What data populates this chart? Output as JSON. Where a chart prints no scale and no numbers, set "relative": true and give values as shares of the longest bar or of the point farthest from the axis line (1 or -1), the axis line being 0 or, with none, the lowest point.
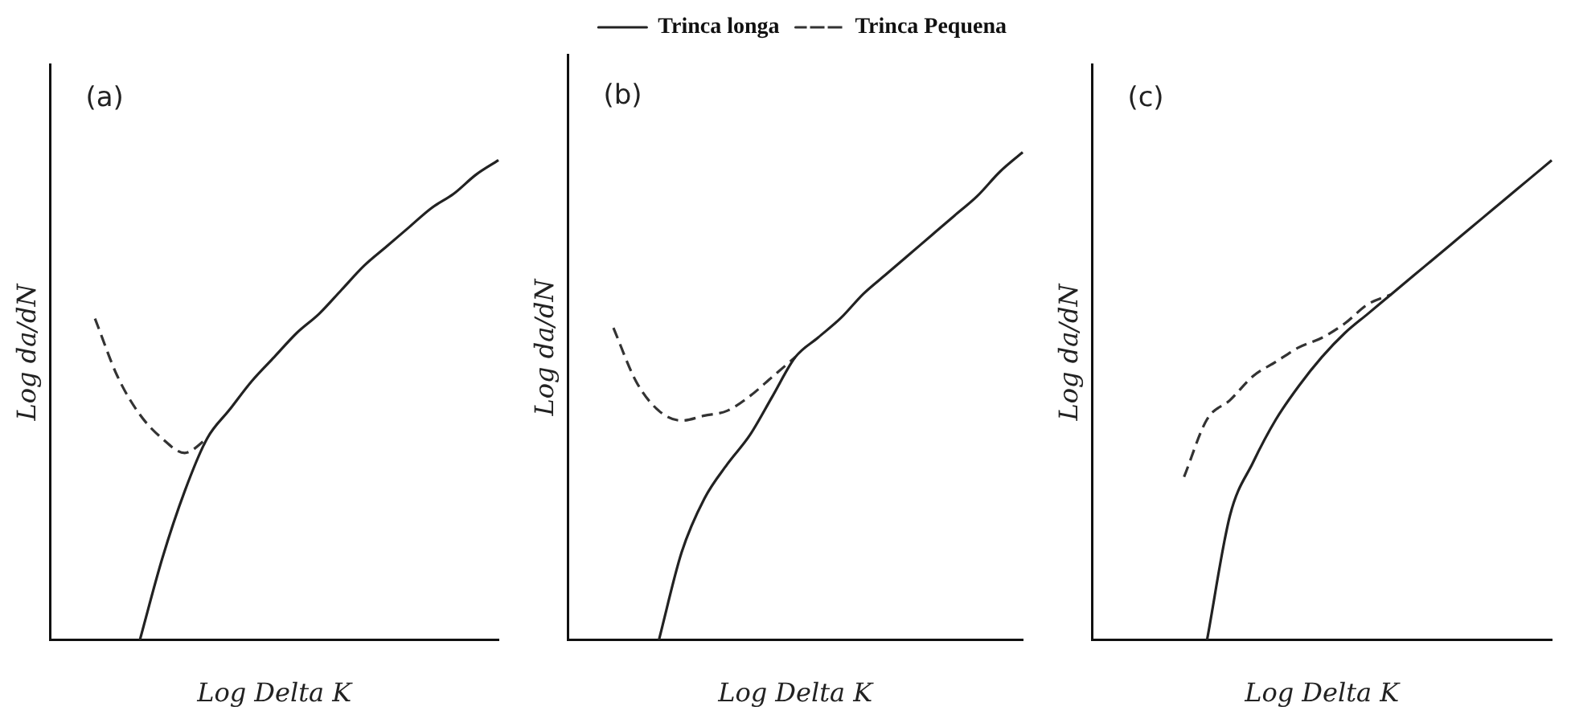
{
  "chart_data": [
    {
      "type": "line",
      "relative": true,
      "xlabel": "Log Delta K",
      "ylabel": "Log da/dN",
      "annotations": [
        "(a)"
      ],
      "grid": false,
      "legend": false,
      "marker": "none",
      "categories": [
        null,
        null,
        null,
        null,
        null,
        null,
        null,
        null,
        null,
        null,
        null,
        null,
        null,
        null,
        null,
        null,
        null,
        null,
        null,
        null,
        null
      ],
      "series": [
        {
          "color": "#222222",
          "line_style": "solid",
          "values": [
            null,
            null,
            null,
            null,
            0,
            0.17,
            0.31,
            0.42,
            0.48,
            0.54,
            0.59,
            0.64,
            0.68,
            0.73,
            0.78,
            0.82,
            0.86,
            0.9,
            0.93,
            0.97,
            1
          ]
        },
        {
          "color": "#333333",
          "line_style": "dashed",
          "values": [
            null,
            null,
            0.67,
            0.55,
            0.47,
            0.42,
            0.39,
            0.42,
            null,
            null,
            null,
            null,
            null,
            null,
            null,
            null,
            null,
            null,
            null,
            null,
            null
          ]
        }
      ]
    },
    {
      "type": "line",
      "relative": true,
      "xlabel": "Log Delta K",
      "ylabel": "Log da/dN",
      "annotations": [
        "(b)"
      ],
      "grid": false,
      "legend": "top right",
      "marker": "none",
      "categories": [
        null,
        null,
        null,
        null,
        null,
        null,
        null,
        null,
        null,
        null,
        null,
        null,
        null,
        null,
        null,
        null,
        null,
        null,
        null,
        null,
        null
      ],
      "series": [
        {
          "name": "Trinca longa",
          "color": "#222222",
          "line_style": "solid",
          "values": [
            null,
            null,
            null,
            null,
            0,
            0.18,
            0.29,
            0.36,
            0.42,
            0.5,
            0.58,
            0.62,
            0.66,
            0.71,
            0.75,
            0.79,
            0.83,
            0.87,
            0.91,
            0.96,
            1
          ]
        },
        {
          "name": "Trinca Pequena",
          "color": "#333333",
          "line_style": "dashed",
          "values": [
            null,
            null,
            0.64,
            0.53,
            0.47,
            0.45,
            0.46,
            0.47,
            0.5,
            0.54,
            0.58,
            null,
            null,
            null,
            null,
            null,
            null,
            null,
            null,
            null,
            null
          ]
        }
      ]
    },
    {
      "type": "line",
      "relative": true,
      "xlabel": "Log Delta K",
      "ylabel": "Log da/dN",
      "annotations": [
        "(c)"
      ],
      "grid": false,
      "legend": false,
      "marker": "none",
      "categories": [
        null,
        null,
        null,
        null,
        null,
        null,
        null,
        null,
        null,
        null,
        null,
        null,
        null,
        null,
        null,
        null,
        null,
        null,
        null,
        null,
        null
      ],
      "series": [
        {
          "color": "#222222",
          "line_style": "solid",
          "values": [
            null,
            null,
            null,
            null,
            null,
            0,
            0.26,
            0.37,
            0.46,
            0.53,
            0.59,
            0.64,
            0.68,
            0.72,
            0.76,
            0.8,
            0.84,
            0.88,
            0.92,
            0.96,
            1
          ]
        },
        {
          "color": "#333333",
          "line_style": "dashed",
          "values": [
            null,
            null,
            null,
            null,
            0.34,
            0.46,
            0.5,
            0.55,
            0.58,
            0.61,
            0.63,
            0.66,
            0.7,
            0.72,
            null,
            null,
            null,
            null,
            null,
            null,
            null
          ]
        }
      ]
    }
  ]
}
